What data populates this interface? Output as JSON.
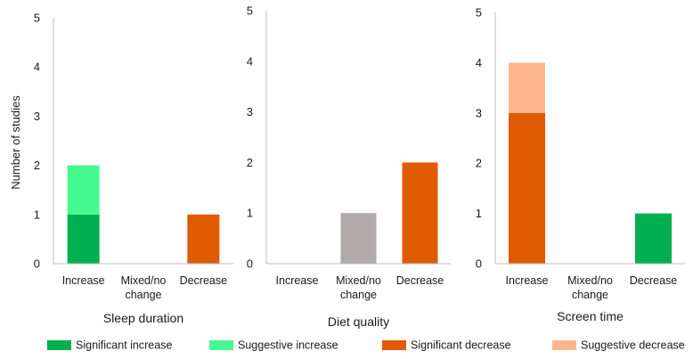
{
  "chart_data": [
    {
      "type": "bar",
      "stacked": true,
      "title": "Sleep duration",
      "ylabel": "Number of studies",
      "categories": [
        "Increase",
        "Mixed/no change",
        "Decrease"
      ],
      "ylim": [
        0,
        5
      ],
      "yticks": [
        0,
        1,
        2,
        3,
        4,
        5
      ],
      "series": [
        {
          "name": "Significant increase",
          "values": [
            1,
            0,
            0
          ]
        },
        {
          "name": "Suggestive increase",
          "values": [
            1,
            0,
            0
          ]
        },
        {
          "name": "Mixed/no change",
          "values": [
            0,
            0,
            0
          ]
        },
        {
          "name": "Significant decrease",
          "values": [
            0,
            0,
            1
          ]
        },
        {
          "name": "Suggestive decrease",
          "values": [
            0,
            0,
            0
          ]
        }
      ]
    },
    {
      "type": "bar",
      "stacked": true,
      "title": "Diet quality",
      "ylabel": "",
      "categories": [
        "Increase",
        "Mixed/no change",
        "Decrease"
      ],
      "ylim": [
        0,
        5
      ],
      "yticks": [
        0,
        1,
        2,
        3,
        4,
        5
      ],
      "series": [
        {
          "name": "Significant increase",
          "values": [
            0,
            0,
            0
          ]
        },
        {
          "name": "Suggestive increase",
          "values": [
            0,
            0,
            0
          ]
        },
        {
          "name": "Mixed/no change",
          "values": [
            0,
            1,
            0
          ]
        },
        {
          "name": "Significant decrease",
          "values": [
            0,
            0,
            2
          ]
        },
        {
          "name": "Suggestive decrease",
          "values": [
            0,
            0,
            0
          ]
        }
      ]
    },
    {
      "type": "bar",
      "stacked": true,
      "title": "Screen time",
      "ylabel": "",
      "categories": [
        "Increase",
        "Mixed/no change",
        "Decrease"
      ],
      "ylim": [
        0,
        5
      ],
      "yticks": [
        0,
        1,
        2,
        3,
        4,
        5
      ],
      "series": [
        {
          "name": "Significant increase",
          "values": [
            0,
            0,
            1
          ]
        },
        {
          "name": "Suggestive increase",
          "values": [
            0,
            0,
            0
          ]
        },
        {
          "name": "Mixed/no change",
          "values": [
            0,
            0,
            0
          ]
        },
        {
          "name": "Significant decrease",
          "values": [
            3,
            0,
            0
          ]
        },
        {
          "name": "Suggestive decrease",
          "values": [
            1,
            0,
            0
          ]
        }
      ]
    }
  ],
  "colors": {
    "Significant increase": "#00b050",
    "Suggestive increase": "#45fa91",
    "Mixed/no change": "#b0aaaa",
    "Significant decrease": "#e05a00",
    "Suggestive decrease": "#fdb78a",
    "axis": "#bfbfbf"
  },
  "legend": {
    "placement": "bottom",
    "items": [
      {
        "label": "Significant increase",
        "color_key": "Significant increase"
      },
      {
        "label": "Suggestive increase",
        "color_key": "Suggestive increase"
      },
      {
        "label": "Significant decrease",
        "color_key": "Significant decrease"
      },
      {
        "label": "Suggestive decrease",
        "color_key": "Suggestive decrease"
      }
    ]
  }
}
